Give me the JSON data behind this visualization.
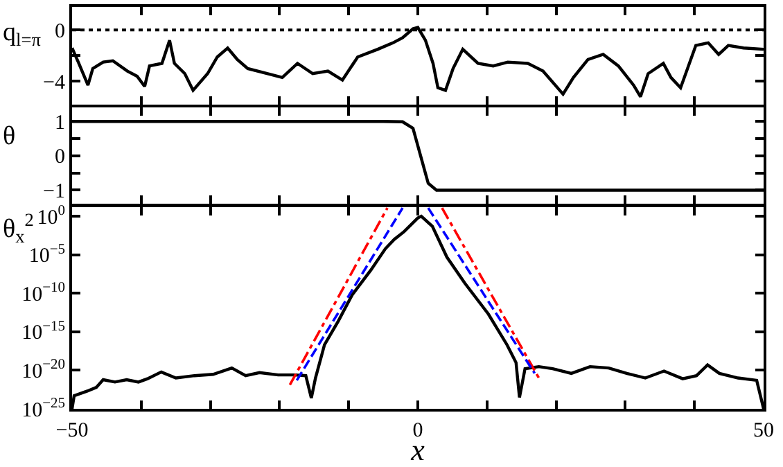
{
  "chart_data": [
    {
      "type": "line",
      "ylabel": "q$_{l=π}$",
      "xlim": [
        -50,
        50
      ],
      "ylim": [
        -5.8,
        1.8
      ],
      "tick_labels": "y",
      "xticks": [
        {
          "value": -50,
          "label": null
        },
        {
          "value": -40,
          "label": null
        },
        {
          "value": -30,
          "label": null
        },
        {
          "value": -20,
          "label": null
        },
        {
          "value": -10,
          "label": null
        },
        {
          "value": 0,
          "label": null
        },
        {
          "value": 10,
          "label": null
        },
        {
          "value": 20,
          "label": null
        },
        {
          "value": 30,
          "label": null
        },
        {
          "value": 40,
          "label": null
        },
        {
          "value": 50,
          "label": null
        }
      ],
      "yticks": [
        0,
        {
          "value": -2,
          "label": null
        },
        -4
      ],
      "ref_lines": [
        {
          "axis": "y",
          "value": 0,
          "label": null,
          "color": "#000000",
          "line_style": "dotted"
        }
      ],
      "x": [
        -50,
        -49.1,
        -47.7,
        -47,
        -45.5,
        -44.1,
        -42,
        -40.6,
        -39.5,
        -38.8,
        -37,
        -35.9,
        -35.2,
        -33.7,
        -32.5,
        -30.4,
        -29,
        -27.5,
        -26.1,
        -24.6,
        -21.7,
        -19.6,
        -17.4,
        -15.2,
        -13,
        -10.9,
        -8.7,
        -5.8,
        -3.6,
        -2.2,
        -0.7,
        0,
        1.1,
        2.2,
        2.9,
        4,
        5.1,
        6.5,
        8.7,
        10.9,
        13,
        15.9,
        18.1,
        21,
        22.5,
        24.6,
        26.8,
        29,
        31.2,
        32.2,
        33.3,
        35.5,
        36.6,
        38,
        40.2,
        42,
        43.5,
        44.9,
        47.1,
        50
      ],
      "series": [
        {
          "color": "#000000",
          "values": [
            -1.4,
            -2.5,
            -4.3,
            -3.0,
            -2.5,
            -2.4,
            -3.2,
            -3.6,
            -4.4,
            -2.8,
            -2.6,
            -0.8,
            -2.6,
            -3.4,
            -4.7,
            -3.4,
            -2.1,
            -1.4,
            -2.3,
            -3.0,
            -3.4,
            -3.7,
            -2.6,
            -3.4,
            -3.2,
            -3.9,
            -2.1,
            -1.5,
            -1.0,
            -0.6,
            0.1,
            0.2,
            -0.8,
            -2.6,
            -4.5,
            -4.7,
            -3.0,
            -1.5,
            -2.6,
            -2.8,
            -2.5,
            -2.6,
            -3.2,
            -5.0,
            -3.7,
            -2.3,
            -1.9,
            -2.8,
            -4.3,
            -5.2,
            -3.4,
            -2.6,
            -3.7,
            -4.5,
            -1.2,
            -1.0,
            -1.9,
            -1.2,
            -1.4,
            -1.5
          ]
        }
      ]
    },
    {
      "type": "line",
      "ylabel": "θ",
      "xlim": [
        -50,
        50
      ],
      "ylim": [
        -1.4,
        1.4
      ],
      "tick_labels": "y",
      "xticks": [
        {
          "value": -50,
          "label": null
        },
        {
          "value": -40,
          "label": null
        },
        {
          "value": -30,
          "label": null
        },
        {
          "value": -20,
          "label": null
        },
        {
          "value": -10,
          "label": null
        },
        {
          "value": 0,
          "label": null
        },
        {
          "value": 10,
          "label": null
        },
        {
          "value": 20,
          "label": null
        },
        {
          "value": 30,
          "label": null
        },
        {
          "value": 40,
          "label": null
        },
        {
          "value": 50,
          "label": null
        }
      ],
      "yticks": [
        1,
        {
          "value": 0.5,
          "label": null
        },
        0,
        {
          "value": -0.5,
          "label": null
        },
        -1
      ],
      "x": [
        -50,
        -5,
        -2.2,
        -0.7,
        0.4,
        1.5,
        2.7,
        5,
        50
      ],
      "series": [
        {
          "color": "#000000",
          "values": [
            1,
            1,
            0.99,
            0.8,
            0,
            -0.8,
            -1,
            -1,
            -1
          ]
        }
      ]
    },
    {
      "type": "line",
      "ylabel": "θ$_{x}$$^{2}$",
      "xlabel": "x",
      "log": true,
      "xlim": [
        -50,
        50
      ],
      "ylim": [
        1e-25,
        15
      ],
      "xticks": [
        -50,
        {
          "value": -40,
          "label": null
        },
        {
          "value": -30,
          "label": null
        },
        {
          "value": -20,
          "label": null
        },
        {
          "value": -10,
          "label": null
        },
        0,
        {
          "value": 10,
          "label": null
        },
        {
          "value": 20,
          "label": null
        },
        {
          "value": 30,
          "label": null
        },
        {
          "value": 40,
          "label": null
        },
        50
      ],
      "yticks": [
        {
          "value": 1,
          "label": "10$^{0}$"
        },
        {
          "value": 1e-05,
          "label": "10$^{−5}$"
        },
        {
          "value": 1e-10,
          "label": "10$^{−10}$"
        },
        {
          "value": 1e-15,
          "label": "10$^{−15}$"
        },
        {
          "value": 1e-20,
          "label": "10$^{−20}$"
        },
        {
          "value": 1e-25,
          "label": "10$^{−25}$"
        }
      ],
      "series": [
        {
          "color": "#000000",
          "line_style": "solid",
          "x": [
            -50,
            -49.7,
            -47.8,
            -46.5,
            -45.5,
            -43.8,
            -42.1,
            -40.4,
            -39.1,
            -37.1,
            -35,
            -32.3,
            -29.6,
            -26.9,
            -24.9,
            -22.9,
            -20.2,
            -17.8,
            -16.2,
            -15.4,
            -14.8,
            -13.5,
            -11.5,
            -9.5,
            -6.8,
            -4.7,
            -3.4,
            -2,
            0,
            0.5,
            2.1,
            4.2,
            6.8,
            10.2,
            12.9,
            14.2,
            14.7,
            15.5,
            17.5,
            19.5,
            22.2,
            24.9,
            27.6,
            30.2,
            32.9,
            35.6,
            38.3,
            40.3,
            41.9,
            43.6,
            46.3,
            49,
            50
          ],
          "values": [
            1e-25,
            5e-24,
            2e-23,
            6e-23,
            6e-22,
            3e-22,
            6e-22,
            3e-22,
            8e-22,
            6e-21,
            1e-21,
            2e-21,
            3e-21,
            2e-20,
            2e-21,
            5e-21,
            2.5e-21,
            2.5e-21,
            2e-21,
            2.5e-24,
            1e-21,
            2e-17,
            2.5e-14,
            6e-11,
            1e-07,
            6e-05,
            0.001,
            0.01,
            0.6,
            1,
            0.05,
            5e-06,
            2e-09,
            2e-13,
            2e-17,
            1e-19,
            3e-24,
            1.6e-20,
            3e-20,
            1.6e-20,
            4e-21,
            3e-20,
            2e-20,
            4e-21,
            1e-21,
            8e-21,
            8e-22,
            2e-21,
            5e-20,
            4e-21,
            1e-21,
            5e-22,
            1e-25
          ]
        },
        {
          "color": "#ff0000",
          "line_style": "dashdot",
          "x": [
            -18.5,
            -4.4,
            null,
            3.5,
            17.5
          ],
          "values": [
            1.3e-22,
            12,
            null,
            12,
            1e-21
          ]
        },
        {
          "color": "#0000ff",
          "line_style": "dashed",
          "x": [
            -17.5,
            -2.2,
            null,
            1.5,
            16.9
          ],
          "values": [
            5e-22,
            12,
            null,
            12,
            4e-21
          ]
        }
      ]
    }
  ]
}
